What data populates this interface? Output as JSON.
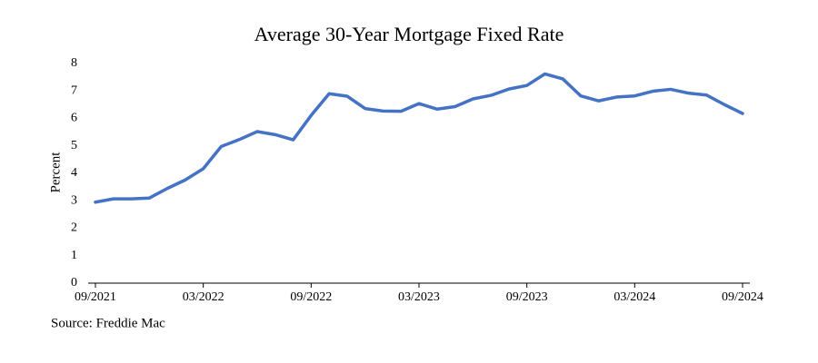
{
  "chart_data": {
    "type": "line",
    "title": "Average 30-Year Mortgage Fixed Rate",
    "y_label": "Percent",
    "source": "Source: Freddie Mac",
    "categories": [
      "09/2021",
      null,
      null,
      null,
      null,
      null,
      "03/2022",
      null,
      null,
      null,
      null,
      null,
      "09/2022",
      null,
      null,
      null,
      null,
      null,
      "03/2023",
      null,
      null,
      null,
      null,
      null,
      "09/2023",
      null,
      null,
      null,
      null,
      null,
      "03/2024",
      null,
      null,
      null,
      null,
      null,
      "09/2024"
    ],
    "series": [
      {
        "name": "Average 30-Year Mortgage Fixed Rate",
        "color": "#4472c4",
        "values": [
          2.95,
          3.07,
          3.07,
          3.1,
          3.45,
          3.76,
          4.17,
          4.98,
          5.23,
          5.52,
          5.41,
          5.22,
          6.11,
          6.9,
          6.81,
          6.36,
          6.27,
          6.26,
          6.54,
          6.34,
          6.43,
          6.71,
          6.84,
          7.07,
          7.2,
          7.62,
          7.44,
          6.82,
          6.64,
          6.78,
          6.82,
          6.99,
          7.06,
          6.92,
          6.85,
          6.5,
          6.18
        ]
      }
    ],
    "ylim": [
      0,
      8
    ],
    "yticks": [
      0,
      1,
      2,
      3,
      4,
      5,
      6,
      7,
      8
    ],
    "grid": false
  }
}
